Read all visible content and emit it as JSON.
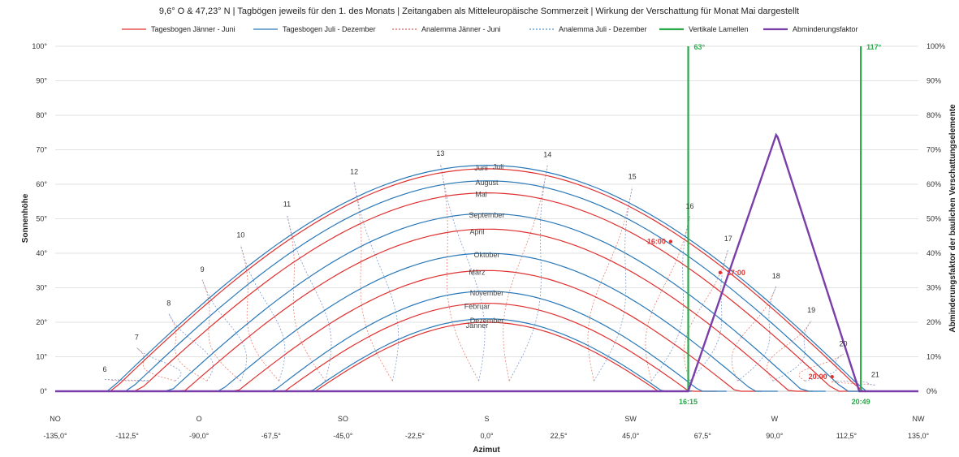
{
  "title": "9,6° O & 47,23° N | Tagbögen jeweils für den 1. des Monats | Zeitangaben als Mitteleuropäische Sommerzeit | Wirkung der Verschattung für Monat Mai dargestellt",
  "legend": [
    {
      "label": "Tagesbogen Jänner - Juni",
      "color": "#e03030",
      "dash": ""
    },
    {
      "label": "Tagesbogen Juli - Dezember",
      "color": "#2a78b8",
      "dash": ""
    },
    {
      "label": "Analemma Jänner - Juni",
      "color": "#e03030",
      "dash": "2,2"
    },
    {
      "label": "Analemma Juli - Dezember",
      "color": "#2a78b8",
      "dash": "2,2"
    },
    {
      "label": "Vertikale Lamellen",
      "color": "#2aa84a",
      "dash": ""
    },
    {
      "label": "Abminderungsfaktor",
      "color": "#7a3ea8",
      "dash": ""
    }
  ],
  "chart_data": {
    "type": "line",
    "title": "9,6° O & 47,23° N | Tagbögen jeweils für den 1. des Monats | Zeitangaben als Mitteleuropäische Sommerzeit | Wirkung der Verschattung für Monat Mai dargestellt",
    "xlabel": "Azimut",
    "ylabel": "Sonnenhöhe",
    "y2label": "Abminderungsfaktor der baulichen Verschattungselemente",
    "xlim": [
      -135,
      135
    ],
    "ylim": [
      0,
      100
    ],
    "x_ticks": [
      "-135,0°",
      "-112,5°",
      "-90,0°",
      "-67,5°",
      "-45,0°",
      "-22,5°",
      "0,0°",
      "22,5°",
      "45,0°",
      "67,5°",
      "90,0°",
      "112,5°",
      "135,0°"
    ],
    "compass_labels": [
      "NO",
      "O",
      "SO",
      "S",
      "SW",
      "W",
      "NW"
    ],
    "y_ticks": [
      "0°",
      "10°",
      "20°",
      "30°",
      "40°",
      "50°",
      "60°",
      "70°",
      "80°",
      "90°",
      "100°"
    ],
    "y2_ticks": [
      "0%",
      "10%",
      "20%",
      "30%",
      "40%",
      "50%",
      "60%",
      "70%",
      "80%",
      "90%",
      "100%"
    ],
    "grid": true,
    "legend_position": "top",
    "day_arcs": [
      {
        "month": "Jänner",
        "group": "Jänner - Juni",
        "max_alt": 20,
        "range": [
          -63,
          63
        ]
      },
      {
        "month": "Februar",
        "group": "Jänner - Juni",
        "max_alt": 25.5,
        "range": [
          -72,
          72
        ]
      },
      {
        "month": "März",
        "group": "Jänner - Juni",
        "max_alt": 35,
        "range": [
          -86,
          86
        ]
      },
      {
        "month": "April",
        "group": "Jänner - Juni",
        "max_alt": 47,
        "range": [
          -102,
          102
        ]
      },
      {
        "month": "Mai",
        "group": "Jänner - Juni",
        "max_alt": 57.5,
        "range": [
          -116,
          116
        ]
      },
      {
        "month": "Juni",
        "group": "Jänner - Juni",
        "max_alt": 64.5,
        "range": [
          -124,
          124
        ]
      },
      {
        "month": "Juli",
        "group": "Juli - Dezember",
        "max_alt": 65.5,
        "range": [
          -125,
          125
        ]
      },
      {
        "month": "August",
        "group": "Juli - Dezember",
        "max_alt": 61,
        "range": [
          -119,
          119
        ]
      },
      {
        "month": "September",
        "group": "Juli - Dezember",
        "max_alt": 51.5,
        "range": [
          -106,
          106
        ]
      },
      {
        "month": "Oktober",
        "group": "Juli - Dezember",
        "max_alt": 40,
        "range": [
          -91,
          91
        ]
      },
      {
        "month": "November",
        "group": "Juli - Dezember",
        "max_alt": 29,
        "range": [
          -75,
          75
        ]
      },
      {
        "month": "Dezember",
        "group": "Juli - Dezember",
        "max_alt": 21,
        "range": [
          -64,
          64
        ]
      }
    ],
    "hour_labels": [
      {
        "text": "6",
        "x": -119.5,
        "y": 6.4
      },
      {
        "text": "7",
        "x": -109.5,
        "y": 15.6
      },
      {
        "text": "8",
        "x": -99.5,
        "y": 25.5
      },
      {
        "text": "9",
        "x": -89,
        "y": 35.3
      },
      {
        "text": "10",
        "x": -77,
        "y": 45.3
      },
      {
        "text": "11",
        "x": -62.5,
        "y": 54.2
      },
      {
        "text": "12",
        "x": -41.5,
        "y": 63.6
      },
      {
        "text": "13",
        "x": -14.5,
        "y": 68.9
      },
      {
        "text": "14",
        "x": 19,
        "y": 68.6
      },
      {
        "text": "15",
        "x": 45.5,
        "y": 62.2
      },
      {
        "text": "16",
        "x": 63.5,
        "y": 53.7
      },
      {
        "text": "17",
        "x": 75.5,
        "y": 44.2
      },
      {
        "text": "18",
        "x": 90.5,
        "y": 33.4
      },
      {
        "text": "19",
        "x": 101.5,
        "y": 23.5
      },
      {
        "text": "20",
        "x": 111.5,
        "y": 13.8
      },
      {
        "text": "21",
        "x": 121.5,
        "y": 4.8
      }
    ],
    "series": [
      {
        "name": "Vertikale Lamellen",
        "color": "#2aa84a",
        "x": [
          63,
          117
        ],
        "labels": [
          "63°",
          "117°"
        ]
      },
      {
        "name": "Abminderungsfaktor",
        "color": "#7a3ea8",
        "x": [
          -135,
          63,
          90.5,
          91,
          116.5,
          135
        ],
        "y": [
          0,
          0,
          74.3,
          73.6,
          0,
          0
        ]
      }
    ],
    "annotations": [
      {
        "text": "16:00",
        "x": 57.5,
        "y": 43.4,
        "color": "#e03030"
      },
      {
        "text": "17:00",
        "x": 73,
        "y": 34.4,
        "color": "#e03030"
      },
      {
        "text": "20:00",
        "x": 108,
        "y": 4.2,
        "color": "#e03030"
      },
      {
        "text": "16:15",
        "x": 63,
        "y": 0,
        "color": "#2aa84a"
      },
      {
        "text": "20:49",
        "x": 117,
        "y": 0,
        "color": "#2aa84a"
      }
    ]
  }
}
